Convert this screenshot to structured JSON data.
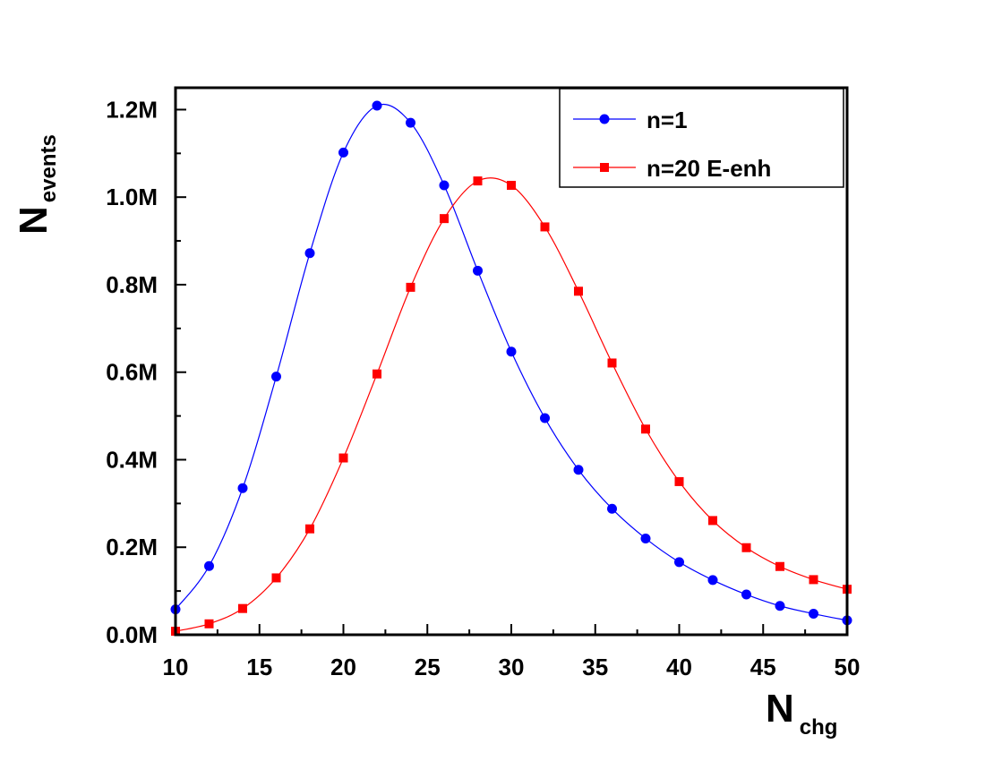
{
  "chart_data": {
    "type": "line",
    "xlabel": "N",
    "xlabel_sub": "chg",
    "ylabel": "N",
    "ylabel_sub": "events",
    "xlim": [
      10,
      50
    ],
    "ylim": [
      0,
      1250000
    ],
    "xticks": [
      10,
      15,
      20,
      25,
      30,
      35,
      40,
      45,
      50
    ],
    "xtick_labels": [
      "10",
      "15",
      "20",
      "25",
      "30",
      "35",
      "40",
      "45",
      "50"
    ],
    "yticks": [
      0,
      200000,
      400000,
      600000,
      800000,
      1000000,
      1200000
    ],
    "ytick_labels": [
      "0.0M",
      "0.2M",
      "0.4M",
      "0.6M",
      "0.8M",
      "1.0M",
      "1.2M"
    ],
    "legend_position": "top-right",
    "grid": false,
    "series": [
      {
        "name": "n=1",
        "color": "#0000ff",
        "marker": "circle",
        "x": [
          10,
          12,
          14,
          16,
          18,
          20,
          22,
          24,
          26,
          28,
          30,
          32,
          34,
          36,
          38,
          40,
          42,
          44,
          46,
          48,
          50
        ],
        "values": [
          58000,
          157000,
          335000,
          590000,
          872000,
          1102000,
          1209000,
          1170000,
          1027000,
          832000,
          647000,
          495000,
          377000,
          288000,
          220000,
          166000,
          125000,
          92000,
          66000,
          48000,
          33000
        ]
      },
      {
        "name": "n=20 E-enh",
        "color": "#ff0000",
        "marker": "square",
        "x": [
          10,
          12,
          14,
          16,
          18,
          20,
          22,
          24,
          26,
          28,
          30,
          32,
          34,
          36,
          38,
          40,
          42,
          44,
          46,
          48,
          50
        ],
        "values": [
          8000,
          25000,
          60000,
          130000,
          242000,
          404000,
          596000,
          794000,
          951000,
          1037000,
          1027000,
          932000,
          785000,
          621000,
          470000,
          350000,
          261000,
          199000,
          156000,
          126000,
          104000
        ]
      }
    ]
  }
}
